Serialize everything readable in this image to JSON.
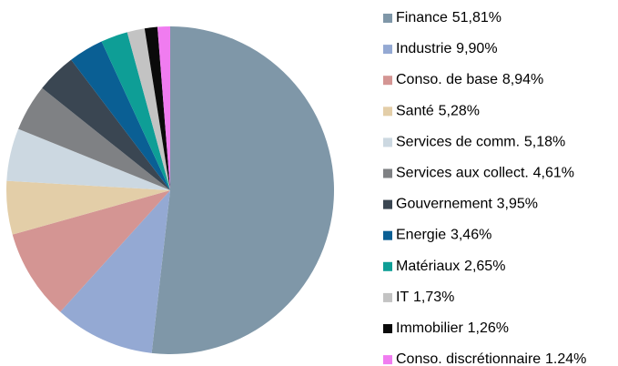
{
  "chart_data": {
    "type": "pie",
    "categories": [
      "Finance",
      "Industrie",
      "Conso. de base",
      "Santé",
      "Services de comm.",
      "Services aux collect.",
      "Gouvernement",
      "Energie",
      "Matériaux",
      "IT",
      "Immobilier",
      "Conso. discrétionnaire"
    ],
    "values": [
      51.81,
      9.9,
      8.94,
      5.28,
      5.18,
      4.61,
      3.95,
      3.46,
      2.65,
      1.73,
      1.26,
      1.24
    ],
    "value_labels": [
      "51,81%",
      "9,90%",
      "8,94%",
      "5,28%",
      "5,18%",
      "4,61%",
      "3,95%",
      "3,46%",
      "2,65%",
      "1,73%",
      "1,26%",
      "1.24%"
    ],
    "colors": [
      "#7f97a8",
      "#94a9d3",
      "#d49593",
      "#e3cea8",
      "#ccd8e1",
      "#7f8184",
      "#3a4652",
      "#0a5f94",
      "#0e9e96",
      "#c3c3c3",
      "#0a0a0a",
      "#f07cf0"
    ],
    "legend": "right"
  }
}
